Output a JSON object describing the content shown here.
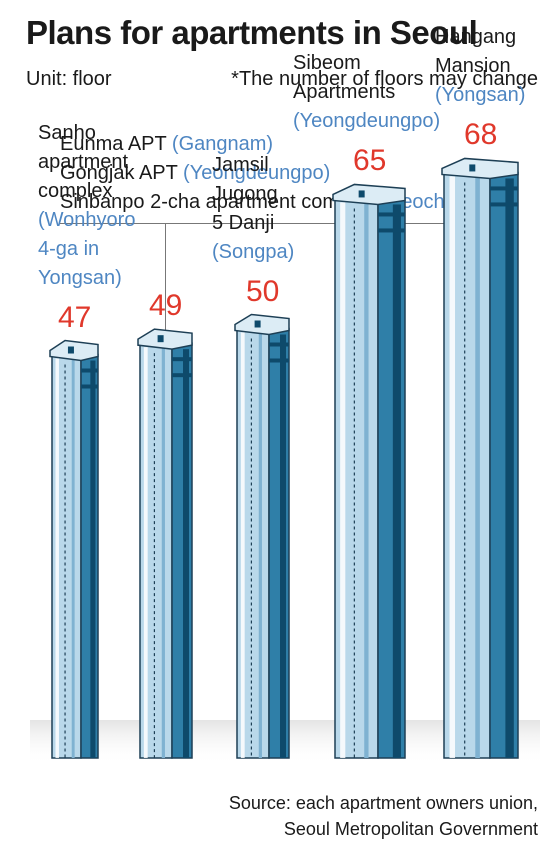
{
  "title": "Plans for apartments in Seoul",
  "unit": "Unit: floor",
  "note": "*The number of floors may change",
  "group_label": {
    "items": [
      {
        "name": "Eunma APT",
        "location": "(Gangnam)"
      },
      {
        "name": "Gongjak APT",
        "location": "(Yeongdeungpo)"
      },
      {
        "name": "Sinbanpo 2-cha apartment complex",
        "location": "(Seocho)"
      }
    ]
  },
  "source": {
    "line1": "Source: each apartment owners union,",
    "line2": "Seoul Metropolitan Government"
  },
  "colors": {
    "value": "#e0382b",
    "location": "#4e86c2",
    "building_front": "#b9d8ea",
    "building_side": "#2f7fa8",
    "building_dark": "#0e4a6b"
  },
  "chart_data": {
    "type": "bar",
    "title": "Plans for apartments in Seoul",
    "unit": "floor",
    "categories": [
      "Sanho apartment complex",
      "Eunma APT / Gongjak APT / Sinbanpo 2-cha apartment complex",
      "Jamsil Jugong 5 Danji",
      "Sibeom Apartments",
      "Hangang Mansion"
    ],
    "values": [
      47,
      49,
      50,
      65,
      68
    ],
    "value_labels": [
      "47",
      "49",
      "50",
      "65",
      "68"
    ],
    "label_lines": [
      [
        "Sanho",
        "apartment",
        "complex"
      ],
      [],
      [
        "Jamsil",
        "Jugong",
        "5 Danji"
      ],
      [
        "Sibeom",
        "Apartments"
      ],
      [
        "Hangang",
        "Mansion"
      ]
    ],
    "location_lines": [
      [
        "(Wonhyoro",
        "4-ga in",
        "Yongsan)"
      ],
      [],
      [
        "(Songpa)"
      ],
      [
        "(Yeongdeungpo)"
      ],
      [
        "(Yongsan)"
      ]
    ]
  }
}
